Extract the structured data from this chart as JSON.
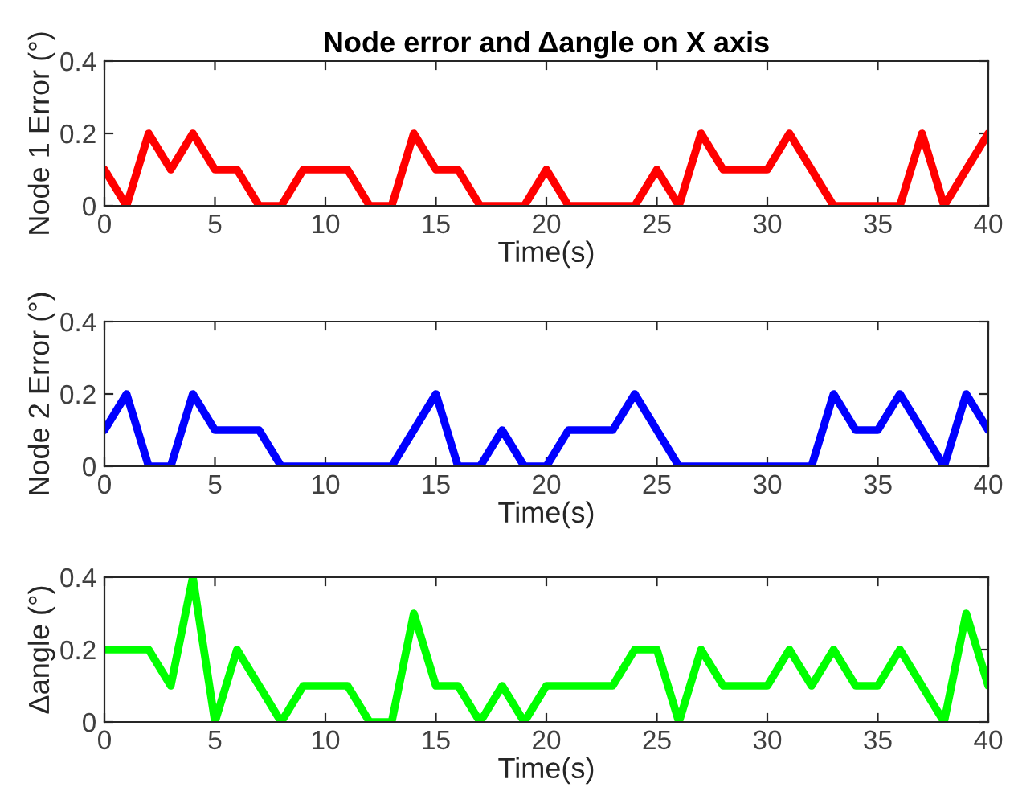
{
  "chart_data": [
    {
      "type": "line",
      "title": "Node error and Δangle on X axis",
      "xlabel": "Time(s)",
      "ylabel": "Node 1 Error (°)",
      "x": [
        0,
        1,
        2,
        3,
        4,
        5,
        6,
        7,
        8,
        9,
        10,
        11,
        12,
        13,
        14,
        15,
        16,
        17,
        18,
        19,
        20,
        21,
        22,
        23,
        24,
        25,
        26,
        27,
        28,
        29,
        30,
        31,
        32,
        33,
        34,
        35,
        36,
        37,
        38,
        39,
        40
      ],
      "series": [
        {
          "color": "#ff0000",
          "values": [
            0.1,
            0,
            0.2,
            0.1,
            0.2,
            0.1,
            0.1,
            0,
            0,
            0.1,
            0.1,
            0.1,
            0,
            0,
            0.2,
            0.1,
            0.1,
            0,
            0,
            0,
            0.1,
            0,
            0,
            0,
            0,
            0.1,
            0,
            0.2,
            0.1,
            0.1,
            0.1,
            0.2,
            0.1,
            0,
            0,
            0,
            0,
            0.2,
            0,
            0.1,
            0.2
          ]
        }
      ],
      "xlim": [
        0,
        40
      ],
      "xticks": [
        0,
        5,
        10,
        15,
        20,
        25,
        30,
        35,
        40
      ],
      "ylim": [
        0,
        0.4
      ],
      "yticks": [
        0,
        0.2,
        0.4
      ],
      "grid": false,
      "legend": false
    },
    {
      "type": "line",
      "xlabel": "Time(s)",
      "ylabel": "Node 2 Error (°)",
      "x": [
        0,
        1,
        2,
        3,
        4,
        5,
        6,
        7,
        8,
        9,
        10,
        11,
        12,
        13,
        14,
        15,
        16,
        17,
        18,
        19,
        20,
        21,
        22,
        23,
        24,
        25,
        26,
        27,
        28,
        29,
        30,
        31,
        32,
        33,
        34,
        35,
        36,
        37,
        38,
        39,
        40
      ],
      "series": [
        {
          "color": "#0000ff",
          "values": [
            0.1,
            0.2,
            0,
            0,
            0.2,
            0.1,
            0.1,
            0.1,
            0,
            0,
            0,
            0,
            0,
            0,
            0.1,
            0.2,
            0,
            0,
            0.1,
            0,
            0,
            0.1,
            0.1,
            0.1,
            0.2,
            0.1,
            0,
            0,
            0,
            0,
            0,
            0,
            0,
            0.2,
            0.1,
            0.1,
            0.2,
            0.1,
            0,
            0.2,
            0.1
          ]
        }
      ],
      "xlim": [
        0,
        40
      ],
      "xticks": [
        0,
        5,
        10,
        15,
        20,
        25,
        30,
        35,
        40
      ],
      "ylim": [
        0,
        0.4
      ],
      "yticks": [
        0,
        0.2,
        0.4
      ],
      "grid": false,
      "legend": false
    },
    {
      "type": "line",
      "xlabel": "Time(s)",
      "ylabel": "Δangle (°)",
      "x": [
        0,
        1,
        2,
        3,
        4,
        5,
        6,
        7,
        8,
        9,
        10,
        11,
        12,
        13,
        14,
        15,
        16,
        17,
        18,
        19,
        20,
        21,
        22,
        23,
        24,
        25,
        26,
        27,
        28,
        29,
        30,
        31,
        32,
        33,
        34,
        35,
        36,
        37,
        38,
        39,
        40
      ],
      "series": [
        {
          "color": "#00ff00",
          "values": [
            0.2,
            0.2,
            0.2,
            0.1,
            0.4,
            0,
            0.2,
            0.1,
            0,
            0.1,
            0.1,
            0.1,
            0,
            0,
            0.3,
            0.1,
            0.1,
            0,
            0.1,
            0,
            0.1,
            0.1,
            0.1,
            0.1,
            0.2,
            0.2,
            0,
            0.2,
            0.1,
            0.1,
            0.1,
            0.2,
            0.1,
            0.2,
            0.1,
            0.1,
            0.2,
            0.1,
            0,
            0.3,
            0.1
          ]
        }
      ],
      "xlim": [
        0,
        40
      ],
      "xticks": [
        0,
        5,
        10,
        15,
        20,
        25,
        30,
        35,
        40
      ],
      "ylim": [
        0,
        0.4
      ],
      "yticks": [
        0,
        0.2,
        0.4
      ],
      "grid": false,
      "legend": false
    }
  ]
}
